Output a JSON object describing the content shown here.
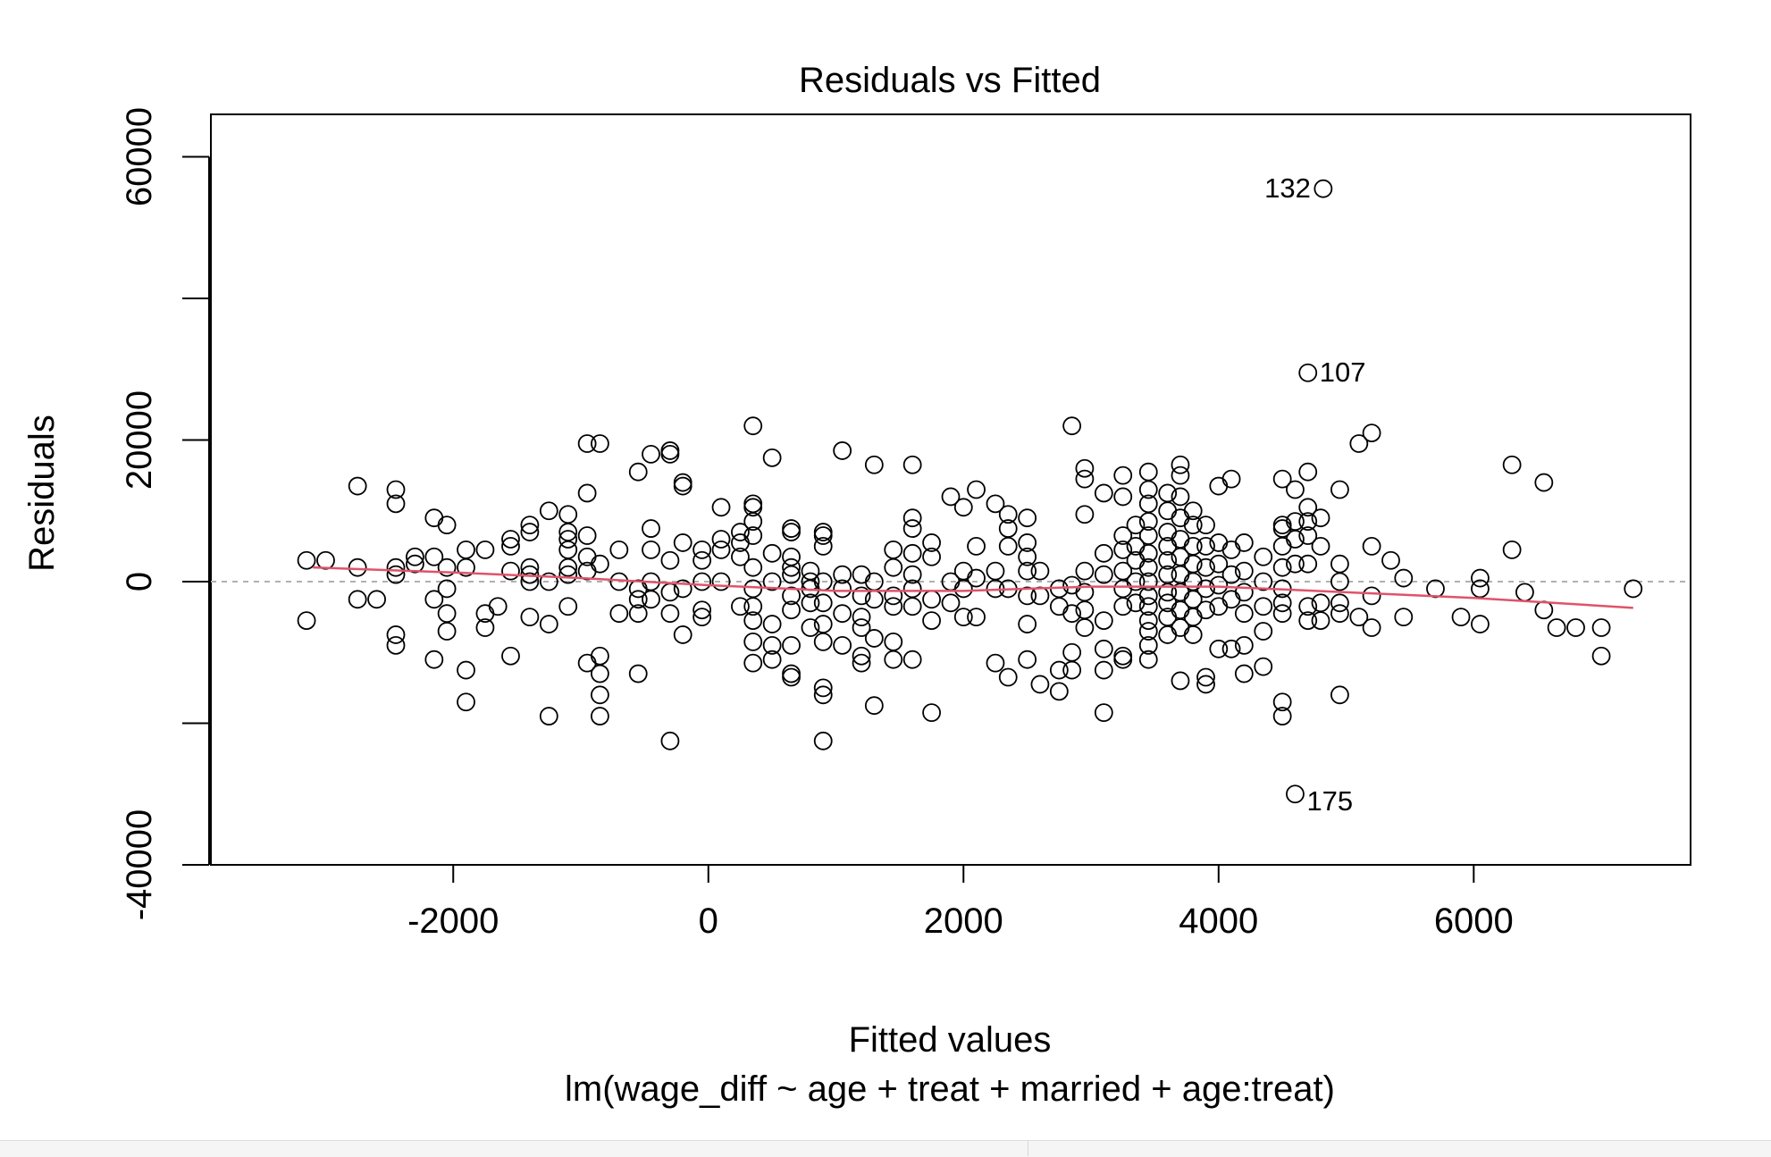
{
  "chart_data": {
    "type": "scatter",
    "title": "Residuals vs Fitted",
    "xlabel": "Fitted values",
    "subtitle": "lm(wage_diff ~ age + treat + married + age:treat)",
    "ylabel": "Residuals",
    "xlim": [
      -3900,
      7700
    ],
    "ylim": [
      -40000,
      66000
    ],
    "x_ticks": [
      -2000,
      0,
      2000,
      4000,
      6000
    ],
    "x_tick_labels": [
      "-2000",
      "0",
      "2000",
      "4000",
      "6000"
    ],
    "y_ticks": [
      -40000,
      -20000,
      0,
      20000,
      40000,
      60000
    ],
    "y_tick_labels": [
      "-40000",
      "",
      "0",
      "20000",
      "",
      "60000"
    ],
    "grid": false,
    "reference_line": {
      "y": 0,
      "style": "dashed",
      "color": "#b0b0b0"
    },
    "smoother": {
      "color": "#df536b",
      "x": [
        -3100,
        -2000,
        -1000,
        0,
        1000,
        2000,
        3000,
        4000,
        5000,
        6000,
        7250
      ],
      "y": [
        2000,
        1300,
        500,
        -500,
        -1300,
        -1300,
        -700,
        -700,
        -1500,
        -2300,
        -3700
      ]
    },
    "labeled_points": [
      {
        "label": "132",
        "x": 4820,
        "y": 55500
      },
      {
        "label": "107",
        "x": 4700,
        "y": 29500
      },
      {
        "label": "175",
        "x": 4600,
        "y": -30000
      }
    ],
    "points": [
      [
        4820,
        55500
      ],
      [
        4700,
        29500
      ],
      [
        4600,
        -30000
      ],
      [
        -3150,
        3000
      ],
      [
        -3000,
        3000
      ],
      [
        -3150,
        -5500
      ],
      [
        -2750,
        13500
      ],
      [
        -2750,
        2000
      ],
      [
        -2750,
        -2500
      ],
      [
        -2600,
        -2500
      ],
      [
        -2450,
        13000
      ],
      [
        -2450,
        11000
      ],
      [
        -2450,
        2000
      ],
      [
        -2450,
        1000
      ],
      [
        -2450,
        -7500
      ],
      [
        -2450,
        -9000
      ],
      [
        -2300,
        2500
      ],
      [
        -2300,
        3500
      ],
      [
        -2150,
        9000
      ],
      [
        -2150,
        3500
      ],
      [
        -2150,
        -2500
      ],
      [
        -2150,
        -11000
      ],
      [
        -2050,
        8000
      ],
      [
        -2050,
        2000
      ],
      [
        -2050,
        -1000
      ],
      [
        -2050,
        -4500
      ],
      [
        -2050,
        -7000
      ],
      [
        -1900,
        4500
      ],
      [
        -1900,
        2000
      ],
      [
        -1900,
        -12500
      ],
      [
        -1900,
        -17000
      ],
      [
        -1750,
        4500
      ],
      [
        -1750,
        -4500
      ],
      [
        -1750,
        -6500
      ],
      [
        -1650,
        -3500
      ],
      [
        -1550,
        6000
      ],
      [
        -1550,
        5000
      ],
      [
        -1550,
        1500
      ],
      [
        -1550,
        -10500
      ],
      [
        -1400,
        8000
      ],
      [
        -1400,
        7000
      ],
      [
        -1400,
        2000
      ],
      [
        -1400,
        1000
      ],
      [
        -1400,
        0
      ],
      [
        -1400,
        -5000
      ],
      [
        -1250,
        10000
      ],
      [
        -1250,
        0
      ],
      [
        -1250,
        -6000
      ],
      [
        -1250,
        -19000
      ],
      [
        -1100,
        9500
      ],
      [
        -1100,
        7000
      ],
      [
        -1100,
        6000
      ],
      [
        -1100,
        4500
      ],
      [
        -1100,
        2000
      ],
      [
        -1100,
        1000
      ],
      [
        -1100,
        -3500
      ],
      [
        -950,
        19500
      ],
      [
        -950,
        12500
      ],
      [
        -950,
        6500
      ],
      [
        -950,
        3500
      ],
      [
        -950,
        1500
      ],
      [
        -950,
        -11500
      ],
      [
        -850,
        19500
      ],
      [
        -850,
        2500
      ],
      [
        -850,
        -10500
      ],
      [
        -850,
        -13000
      ],
      [
        -850,
        -16000
      ],
      [
        -850,
        -19000
      ],
      [
        -700,
        4500
      ],
      [
        -700,
        0
      ],
      [
        -700,
        -4500
      ],
      [
        -550,
        15500
      ],
      [
        -550,
        -1000
      ],
      [
        -550,
        -2500
      ],
      [
        -550,
        -4500
      ],
      [
        -550,
        -13000
      ],
      [
        -450,
        18000
      ],
      [
        -450,
        7500
      ],
      [
        -450,
        4500
      ],
      [
        -450,
        0
      ],
      [
        -450,
        -2500
      ],
      [
        -300,
        18500
      ],
      [
        -300,
        18000
      ],
      [
        -300,
        3000
      ],
      [
        -300,
        -1500
      ],
      [
        -300,
        -4500
      ],
      [
        -300,
        -22500
      ],
      [
        -200,
        14000
      ],
      [
        -200,
        13500
      ],
      [
        -200,
        5500
      ],
      [
        -200,
        -1000
      ],
      [
        -200,
        -7500
      ],
      [
        -50,
        4500
      ],
      [
        -50,
        3000
      ],
      [
        -50,
        0
      ],
      [
        -50,
        -4000
      ],
      [
        -50,
        -5000
      ],
      [
        100,
        10500
      ],
      [
        100,
        6000
      ],
      [
        100,
        4500
      ],
      [
        100,
        0
      ],
      [
        250,
        7000
      ],
      [
        250,
        5500
      ],
      [
        250,
        3500
      ],
      [
        250,
        -3500
      ],
      [
        350,
        22000
      ],
      [
        350,
        11000
      ],
      [
        350,
        10500
      ],
      [
        350,
        8500
      ],
      [
        350,
        6500
      ],
      [
        350,
        2000
      ],
      [
        350,
        -1000
      ],
      [
        350,
        -3500
      ],
      [
        350,
        -5500
      ],
      [
        350,
        -8500
      ],
      [
        350,
        -11500
      ],
      [
        500,
        17500
      ],
      [
        500,
        4000
      ],
      [
        500,
        0
      ],
      [
        500,
        -6000
      ],
      [
        500,
        -9000
      ],
      [
        500,
        -11000
      ],
      [
        650,
        7500
      ],
      [
        650,
        7000
      ],
      [
        650,
        3500
      ],
      [
        650,
        2000
      ],
      [
        650,
        1000
      ],
      [
        650,
        -2000
      ],
      [
        650,
        -4000
      ],
      [
        650,
        -9000
      ],
      [
        650,
        -13500
      ],
      [
        650,
        -13000
      ],
      [
        800,
        1500
      ],
      [
        800,
        0
      ],
      [
        800,
        -1000
      ],
      [
        800,
        -3000
      ],
      [
        800,
        -6500
      ],
      [
        900,
        7000
      ],
      [
        900,
        6500
      ],
      [
        900,
        5000
      ],
      [
        900,
        0
      ],
      [
        900,
        -3000
      ],
      [
        900,
        -6000
      ],
      [
        900,
        -8500
      ],
      [
        900,
        -15000
      ],
      [
        900,
        -16000
      ],
      [
        900,
        -22500
      ],
      [
        1050,
        18500
      ],
      [
        1050,
        1000
      ],
      [
        1050,
        -1000
      ],
      [
        1050,
        -4500
      ],
      [
        1050,
        -9000
      ],
      [
        1200,
        1000
      ],
      [
        1200,
        -2000
      ],
      [
        1200,
        -5000
      ],
      [
        1200,
        -6500
      ],
      [
        1200,
        -10500
      ],
      [
        1200,
        -11500
      ],
      [
        1300,
        16500
      ],
      [
        1300,
        0
      ],
      [
        1300,
        -2500
      ],
      [
        1300,
        -8000
      ],
      [
        1300,
        -17500
      ],
      [
        1450,
        4500
      ],
      [
        1450,
        2000
      ],
      [
        1450,
        -2000
      ],
      [
        1450,
        -3500
      ],
      [
        1450,
        -8500
      ],
      [
        1450,
        -11000
      ],
      [
        1600,
        16500
      ],
      [
        1600,
        9000
      ],
      [
        1600,
        7500
      ],
      [
        1600,
        4000
      ],
      [
        1600,
        1000
      ],
      [
        1600,
        -1000
      ],
      [
        1600,
        -3500
      ],
      [
        1600,
        -11000
      ],
      [
        1750,
        5500
      ],
      [
        1750,
        3500
      ],
      [
        1750,
        -2500
      ],
      [
        1750,
        -5500
      ],
      [
        1750,
        -18500
      ],
      [
        1900,
        12000
      ],
      [
        1900,
        0
      ],
      [
        1900,
        -3000
      ],
      [
        2000,
        10500
      ],
      [
        2000,
        1500
      ],
      [
        2000,
        -1000
      ],
      [
        2000,
        -5000
      ],
      [
        2100,
        13000
      ],
      [
        2100,
        5000
      ],
      [
        2100,
        500
      ],
      [
        2100,
        -5000
      ],
      [
        2250,
        11000
      ],
      [
        2250,
        1500
      ],
      [
        2250,
        -1000
      ],
      [
        2250,
        -11500
      ],
      [
        2350,
        9500
      ],
      [
        2350,
        7500
      ],
      [
        2350,
        5000
      ],
      [
        2350,
        -1000
      ],
      [
        2350,
        -13500
      ],
      [
        2500,
        9000
      ],
      [
        2500,
        5500
      ],
      [
        2500,
        3500
      ],
      [
        2500,
        1500
      ],
      [
        2500,
        -2000
      ],
      [
        2500,
        -6000
      ],
      [
        2500,
        -11000
      ],
      [
        2600,
        1500
      ],
      [
        2600,
        -2000
      ],
      [
        2600,
        -14500
      ],
      [
        2750,
        -1000
      ],
      [
        2750,
        -3500
      ],
      [
        2750,
        -12500
      ],
      [
        2750,
        -15500
      ],
      [
        2850,
        22000
      ],
      [
        2850,
        -500
      ],
      [
        2850,
        -4500
      ],
      [
        2850,
        -10000
      ],
      [
        2850,
        -12500
      ],
      [
        2950,
        16000
      ],
      [
        2950,
        14500
      ],
      [
        2950,
        9500
      ],
      [
        2950,
        1500
      ],
      [
        2950,
        -1500
      ],
      [
        2950,
        -4000
      ],
      [
        2950,
        -6500
      ],
      [
        3100,
        12500
      ],
      [
        3100,
        4000
      ],
      [
        3100,
        1000
      ],
      [
        3100,
        -5500
      ],
      [
        3100,
        -9500
      ],
      [
        3100,
        -12500
      ],
      [
        3100,
        -18500
      ],
      [
        3250,
        15000
      ],
      [
        3250,
        12000
      ],
      [
        3250,
        6500
      ],
      [
        3250,
        4500
      ],
      [
        3250,
        1500
      ],
      [
        3250,
        -1000
      ],
      [
        3250,
        -3500
      ],
      [
        3250,
        -10500
      ],
      [
        3250,
        -11000
      ],
      [
        3350,
        8000
      ],
      [
        3350,
        5000
      ],
      [
        3350,
        3000
      ],
      [
        3350,
        0
      ],
      [
        3350,
        -3000
      ],
      [
        3450,
        15500
      ],
      [
        3450,
        13000
      ],
      [
        3450,
        11000
      ],
      [
        3450,
        8500
      ],
      [
        3450,
        6500
      ],
      [
        3450,
        4000
      ],
      [
        3450,
        2000
      ],
      [
        3450,
        0
      ],
      [
        3450,
        -2000
      ],
      [
        3450,
        -3500
      ],
      [
        3450,
        -5500
      ],
      [
        3450,
        -7000
      ],
      [
        3450,
        -9000
      ],
      [
        3450,
        -11000
      ],
      [
        3600,
        12500
      ],
      [
        3600,
        10000
      ],
      [
        3600,
        7000
      ],
      [
        3600,
        5000
      ],
      [
        3600,
        3000
      ],
      [
        3600,
        1000
      ],
      [
        3600,
        -1500
      ],
      [
        3600,
        -3000
      ],
      [
        3600,
        -5000
      ],
      [
        3600,
        -7500
      ],
      [
        3700,
        16500
      ],
      [
        3700,
        15000
      ],
      [
        3700,
        12000
      ],
      [
        3700,
        9000
      ],
      [
        3700,
        6000
      ],
      [
        3700,
        3500
      ],
      [
        3700,
        1000
      ],
      [
        3700,
        -1500
      ],
      [
        3700,
        -4000
      ],
      [
        3700,
        -6500
      ],
      [
        3700,
        -14000
      ],
      [
        3800,
        10000
      ],
      [
        3800,
        8000
      ],
      [
        3800,
        5000
      ],
      [
        3800,
        2500
      ],
      [
        3800,
        0
      ],
      [
        3800,
        -2500
      ],
      [
        3800,
        -5000
      ],
      [
        3800,
        -7500
      ],
      [
        3900,
        8000
      ],
      [
        3900,
        5000
      ],
      [
        3900,
        2000
      ],
      [
        3900,
        -1000
      ],
      [
        3900,
        -4000
      ],
      [
        3900,
        -13500
      ],
      [
        3900,
        -14500
      ],
      [
        4000,
        13500
      ],
      [
        4000,
        5500
      ],
      [
        4000,
        2500
      ],
      [
        4000,
        -500
      ],
      [
        4000,
        -3500
      ],
      [
        4000,
        -9500
      ],
      [
        4100,
        14500
      ],
      [
        4100,
        4500
      ],
      [
        4100,
        1000
      ],
      [
        4100,
        -2500
      ],
      [
        4100,
        -9500
      ],
      [
        4200,
        5500
      ],
      [
        4200,
        1500
      ],
      [
        4200,
        -1500
      ],
      [
        4200,
        -4500
      ],
      [
        4200,
        -9000
      ],
      [
        4200,
        -13000
      ],
      [
        4350,
        3500
      ],
      [
        4350,
        0
      ],
      [
        4350,
        -3500
      ],
      [
        4350,
        -7000
      ],
      [
        4350,
        -12000
      ],
      [
        4500,
        14500
      ],
      [
        4500,
        8000
      ],
      [
        4500,
        7500
      ],
      [
        4500,
        5000
      ],
      [
        4500,
        2000
      ],
      [
        4500,
        -1000
      ],
      [
        4500,
        -3000
      ],
      [
        4500,
        -4500
      ],
      [
        4500,
        -17000
      ],
      [
        4500,
        -19000
      ],
      [
        4600,
        13000
      ],
      [
        4600,
        8500
      ],
      [
        4600,
        6000
      ],
      [
        4600,
        2500
      ],
      [
        4700,
        15500
      ],
      [
        4700,
        10500
      ],
      [
        4700,
        8500
      ],
      [
        4700,
        6500
      ],
      [
        4700,
        2500
      ],
      [
        4700,
        -3500
      ],
      [
        4700,
        -5500
      ],
      [
        4800,
        9000
      ],
      [
        4800,
        5000
      ],
      [
        4800,
        -3000
      ],
      [
        4800,
        -5500
      ],
      [
        4950,
        13000
      ],
      [
        4950,
        2500
      ],
      [
        4950,
        0
      ],
      [
        4950,
        -3000
      ],
      [
        4950,
        -4500
      ],
      [
        4950,
        -16000
      ],
      [
        5100,
        19500
      ],
      [
        5100,
        -5000
      ],
      [
        5200,
        21000
      ],
      [
        5200,
        5000
      ],
      [
        5200,
        -2000
      ],
      [
        5200,
        -6500
      ],
      [
        5350,
        3000
      ],
      [
        5450,
        500
      ],
      [
        5450,
        -5000
      ],
      [
        5700,
        -1000
      ],
      [
        5900,
        -5000
      ],
      [
        6050,
        500
      ],
      [
        6050,
        -1000
      ],
      [
        6050,
        -6000
      ],
      [
        6300,
        16500
      ],
      [
        6300,
        4500
      ],
      [
        6400,
        -1500
      ],
      [
        6550,
        14000
      ],
      [
        6550,
        -4000
      ],
      [
        6650,
        -6500
      ],
      [
        6800,
        -6500
      ],
      [
        7000,
        -6500
      ],
      [
        7000,
        -10500
      ],
      [
        7250,
        -1000
      ]
    ]
  }
}
